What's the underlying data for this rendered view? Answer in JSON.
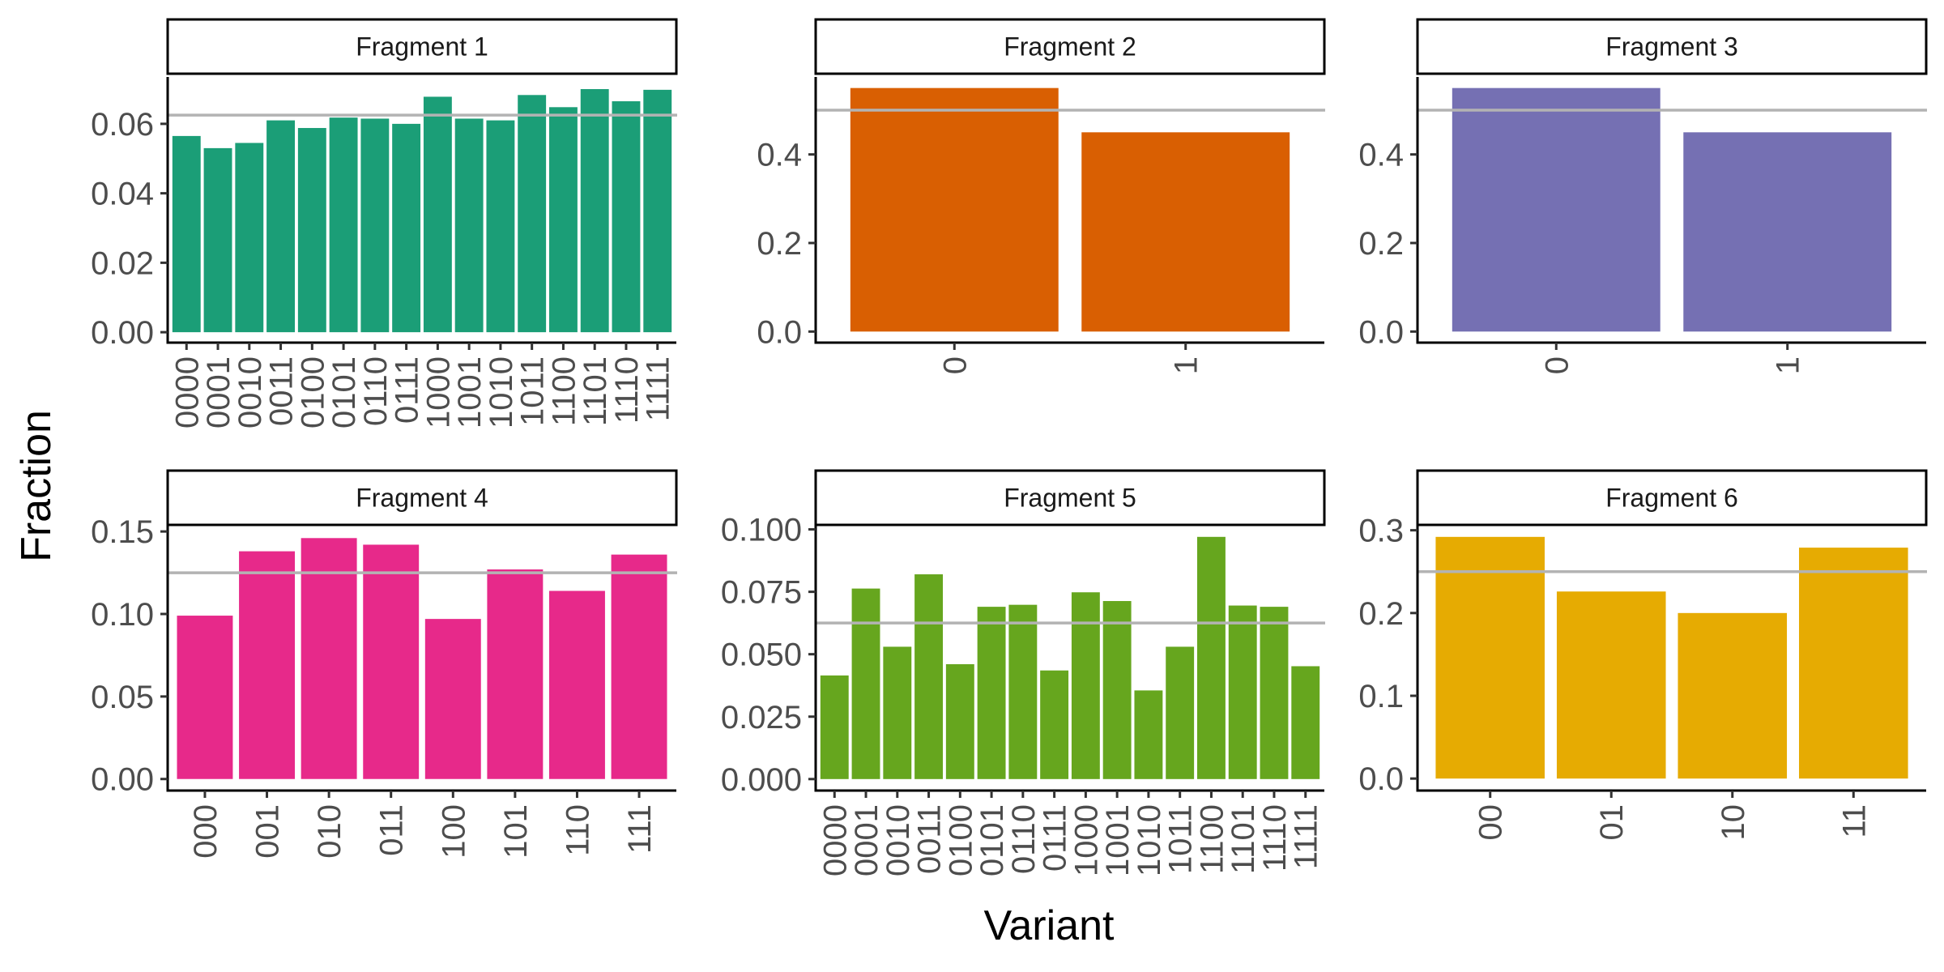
{
  "chart_data": {
    "type": "bar",
    "xlabel": "Variant",
    "ylabel": "Fraction",
    "reference_line_color": "#b3b3b3",
    "grid": false,
    "panels": [
      {
        "title": "Fragment 1",
        "color": "#1b9e77",
        "categories": [
          "0000",
          "0001",
          "0010",
          "0011",
          "0100",
          "0101",
          "0110",
          "0111",
          "1000",
          "1001",
          "1010",
          "1011",
          "1100",
          "1101",
          "1110",
          "1111"
        ],
        "values": [
          0.0565,
          0.053,
          0.0545,
          0.061,
          0.0588,
          0.0618,
          0.0615,
          0.06,
          0.0678,
          0.0615,
          0.061,
          0.0683,
          0.0648,
          0.07,
          0.0665,
          0.0698
        ],
        "reference": 0.0625,
        "ylim": [
          -0.003,
          0.0735
        ],
        "yticks": [
          0,
          0.02,
          0.04,
          0.06
        ],
        "ytick_labels": [
          "0.00",
          "0.02",
          "0.04",
          "0.06"
        ]
      },
      {
        "title": "Fragment 2",
        "color": "#d95f02",
        "categories": [
          "0",
          "1"
        ],
        "values": [
          0.55,
          0.45
        ],
        "reference": 0.5,
        "ylim": [
          -0.025,
          0.575
        ],
        "yticks": [
          0,
          0.2,
          0.4
        ],
        "ytick_labels": [
          "0.0",
          "0.2",
          "0.4"
        ]
      },
      {
        "title": "Fragment 3",
        "color": "#7570b3",
        "categories": [
          "0",
          "1"
        ],
        "values": [
          0.55,
          0.45
        ],
        "reference": 0.5,
        "ylim": [
          -0.025,
          0.575
        ],
        "yticks": [
          0,
          0.2,
          0.4
        ],
        "ytick_labels": [
          "0.0",
          "0.2",
          "0.4"
        ]
      },
      {
        "title": "Fragment 4",
        "color": "#e7298a",
        "categories": [
          "000",
          "001",
          "010",
          "011",
          "100",
          "101",
          "110",
          "111"
        ],
        "values": [
          0.099,
          0.138,
          0.146,
          0.142,
          0.097,
          0.127,
          0.114,
          0.136
        ],
        "reference": 0.125,
        "ylim": [
          -0.007,
          0.154
        ],
        "yticks": [
          0,
          0.05,
          0.1,
          0.15
        ],
        "ytick_labels": [
          "0.00",
          "0.05",
          "0.10",
          "0.15"
        ]
      },
      {
        "title": "Fragment 5",
        "color": "#66a61e",
        "categories": [
          "0000",
          "0001",
          "0010",
          "0011",
          "0100",
          "0101",
          "0110",
          "0111",
          "1000",
          "1001",
          "1010",
          "1011",
          "1100",
          "1101",
          "1110",
          "1111"
        ],
        "values": [
          0.0415,
          0.0763,
          0.053,
          0.082,
          0.046,
          0.069,
          0.0698,
          0.0435,
          0.0748,
          0.0713,
          0.0355,
          0.053,
          0.097,
          0.0695,
          0.069,
          0.0452
        ],
        "reference": 0.0625,
        "ylim": [
          -0.0046,
          0.1018
        ],
        "yticks": [
          0,
          0.025,
          0.05,
          0.075,
          0.1
        ],
        "ytick_labels": [
          "0.000",
          "0.025",
          "0.050",
          "0.075",
          "0.100"
        ]
      },
      {
        "title": "Fragment 6",
        "color": "#e6ab02",
        "categories": [
          "00",
          "01",
          "10",
          "11"
        ],
        "values": [
          0.292,
          0.226,
          0.2,
          0.279
        ],
        "reference": 0.25,
        "ylim": [
          -0.0145,
          0.3065
        ],
        "yticks": [
          0,
          0.1,
          0.2,
          0.3
        ],
        "ytick_labels": [
          "0.0",
          "0.1",
          "0.2",
          "0.3"
        ]
      }
    ]
  }
}
